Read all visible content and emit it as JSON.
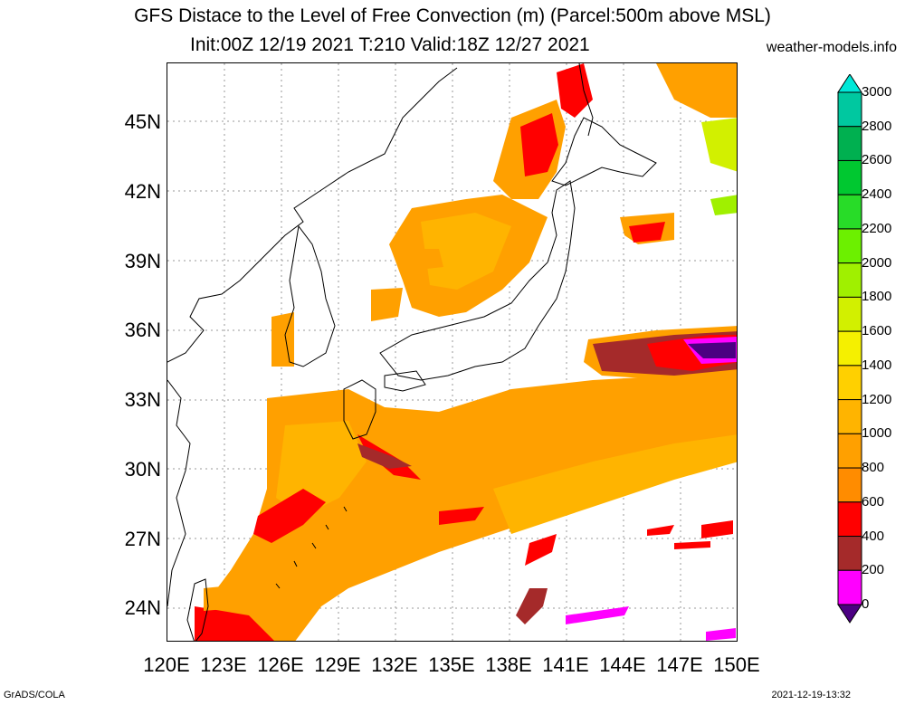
{
  "title": {
    "line1": "GFS Distace to the Level of Free Convection (m) (Parcel:500m above MSL)",
    "line2": "Init:00Z 12/19 2021 T:210 Valid:18Z 12/27 2021",
    "site": "weather-models.info"
  },
  "axes": {
    "lat_labels": [
      "45N",
      "42N",
      "39N",
      "36N",
      "33N",
      "30N",
      "27N",
      "24N"
    ],
    "lon_labels": [
      "120E",
      "123E",
      "126E",
      "129E",
      "132E",
      "135E",
      "138E",
      "141E",
      "144E",
      "147E",
      "150E"
    ]
  },
  "colorbar": {
    "labels": [
      "3000",
      "2800",
      "2600",
      "2400",
      "2200",
      "2000",
      "1800",
      "1600",
      "1400",
      "1200",
      "1000",
      "800",
      "600",
      "400",
      "200",
      "0"
    ],
    "colors": [
      "#00e8d8",
      "#00c8a0",
      "#00b050",
      "#00c830",
      "#28dc28",
      "#6cf000",
      "#a0f000",
      "#d2f000",
      "#f5f000",
      "#ffd000",
      "#ffb400",
      "#ffa000",
      "#ff8c00",
      "#ff0000",
      "#a52a2a",
      "#ff00ff",
      "#4b0082"
    ]
  },
  "footer": {
    "left": "GrADS/COLA",
    "right": "2021-12-19-13:32"
  }
}
